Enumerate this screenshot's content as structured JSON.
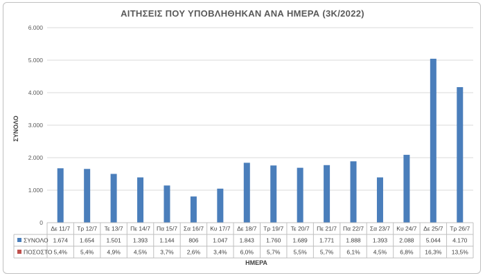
{
  "chart_data": {
    "type": "bar",
    "title": "ΑΙΤΗΣΕΙΣ ΠΟΥ ΥΠΟΒΛΗΘΗΚΑΝ ΑΝΑ ΗΜΕΡΑ (3Κ/2022)",
    "xlabel": "ΗΜΕΡΑ",
    "ylabel": "ΣΥΝΟΛΟ",
    "ylim": [
      0,
      6000
    ],
    "yticks": [
      "0",
      "1.000",
      "2.000",
      "3.000",
      "4.000",
      "5.000",
      "6.000"
    ],
    "grid": true,
    "categories": [
      "Δε 11/7",
      "Τρ 12/7",
      "Τε 13/7",
      "Πε 14/7",
      "Πα 15/7",
      "Σα 16/7",
      "Κυ 17/7",
      "Δε 18/7",
      "Τρ 19/7",
      "Τε 20/7",
      "Πε 21/7",
      "Πα 22/7",
      "Σα 23/7",
      "Κυ 24/7",
      "Δε 25/7",
      "Τρ 26/7"
    ],
    "series": [
      {
        "name": "ΣΥΝΟΛΟ",
        "color": "#4a7ebb",
        "values": [
          1674,
          1654,
          1501,
          1393,
          1144,
          806,
          1047,
          1843,
          1760,
          1689,
          1771,
          1888,
          1393,
          2088,
          5044,
          4170
        ],
        "labels": [
          "1.674",
          "1.654",
          "1.501",
          "1.393",
          "1.144",
          "806",
          "1.047",
          "1.843",
          "1.760",
          "1.689",
          "1.771",
          "1.888",
          "1.393",
          "2.088",
          "5.044",
          "4.170"
        ]
      },
      {
        "name": "ΠΟΣΟΣΤΟ",
        "color": "#c0504d",
        "values": [
          5.4,
          5.4,
          4.9,
          4.5,
          3.7,
          2.6,
          3.4,
          6.0,
          5.7,
          5.5,
          5.7,
          6.1,
          4.5,
          6.8,
          16.3,
          13.5
        ],
        "labels": [
          "5,4%",
          "5,4%",
          "4,9%",
          "4,5%",
          "3,7%",
          "2,6%",
          "3,4%",
          "6,0%",
          "5,7%",
          "5,5%",
          "5,7%",
          "6,1%",
          "4,5%",
          "6,8%",
          "16,3%",
          "13,5%"
        ]
      }
    ]
  }
}
